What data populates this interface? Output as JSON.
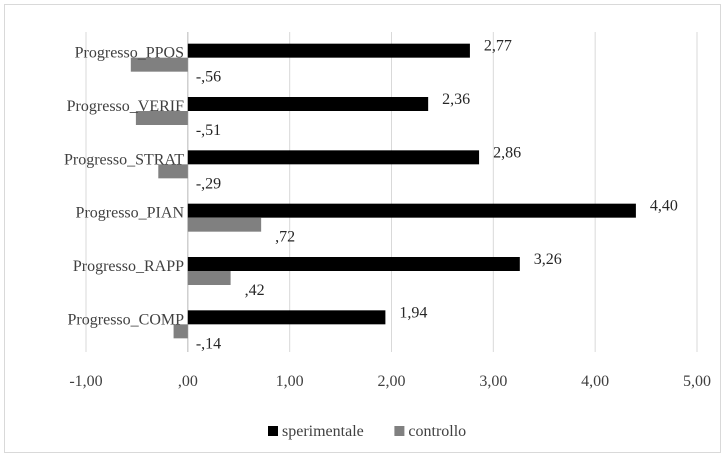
{
  "chart_data": {
    "type": "bar",
    "orientation": "horizontal",
    "categories": [
      "Progresso_PPOS",
      "Progresso_VERIF",
      "Progresso_STRAT",
      "Progresso_PIAN",
      "Progresso_RAPP",
      "Progresso_COMP"
    ],
    "series": [
      {
        "name": "sperimentale",
        "color": "#000000",
        "values": [
          2.77,
          2.36,
          2.86,
          4.4,
          3.26,
          1.94
        ],
        "labels": [
          "2,77",
          "2,36",
          "2,86",
          "4,40",
          "3,26",
          "1,94"
        ]
      },
      {
        "name": "controllo",
        "color": "#808080",
        "values": [
          -0.56,
          -0.51,
          -0.29,
          0.72,
          0.42,
          -0.14
        ],
        "labels": [
          "-,56",
          "-,51",
          "-,29",
          ",72",
          ",42",
          "-,14"
        ]
      }
    ],
    "xlim": [
      -1,
      5
    ],
    "xticks": [
      -1,
      0,
      1,
      2,
      3,
      4,
      5
    ],
    "xtick_labels": [
      "-1,00",
      ",00",
      "1,00",
      "2,00",
      "3,00",
      "4,00",
      "5,00"
    ],
    "grid": "vertical",
    "legend_position": "bottom",
    "title": "",
    "xlabel": "",
    "ylabel": ""
  }
}
